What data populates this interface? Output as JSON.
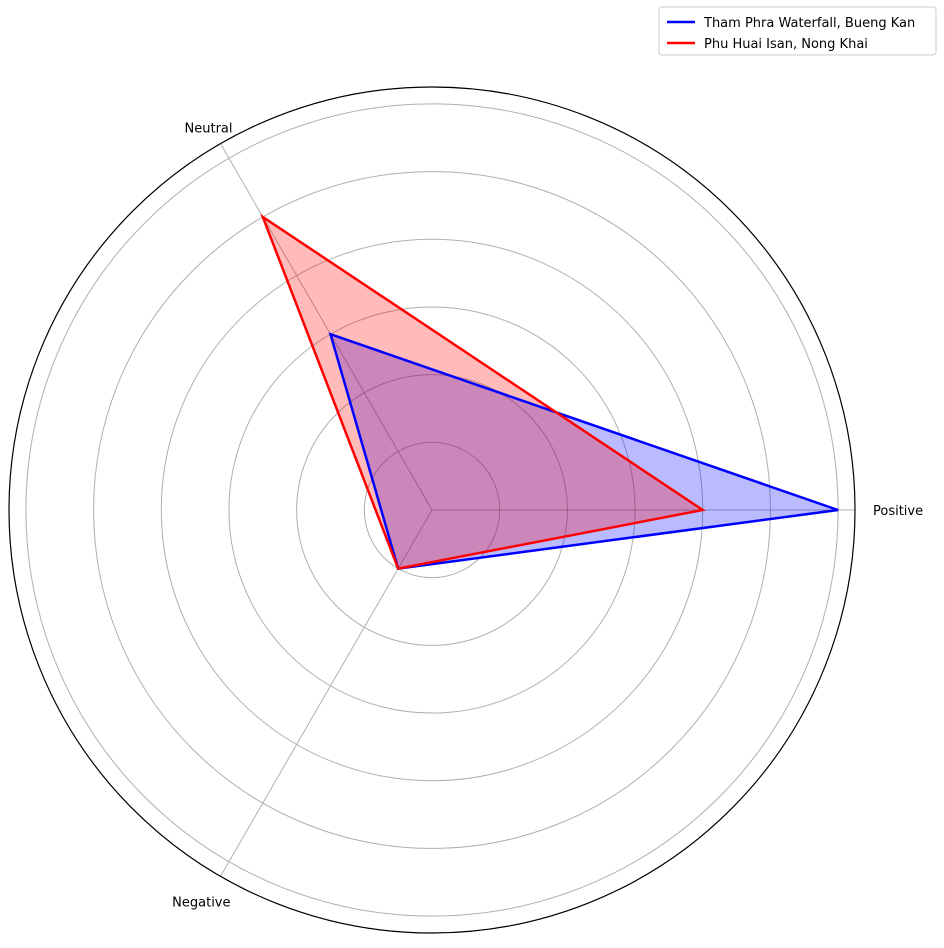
{
  "chart_data": {
    "type": "radar",
    "categories": [
      "Positive",
      "Neutral",
      "Negative"
    ],
    "rlim": [
      0,
      6.25
    ],
    "rings": [
      1,
      2,
      3,
      4,
      5,
      6
    ],
    "grid": true,
    "legend_position": "top-right",
    "series": [
      {
        "name": "Tham Phra Waterfall, Bueng Kan",
        "color": "#0000ff",
        "values": [
          6,
          3,
          1
        ]
      },
      {
        "name": "Phu Huai Isan, Nong Khai",
        "color": "#ff0000",
        "values": [
          4,
          5,
          1
        ]
      }
    ]
  }
}
